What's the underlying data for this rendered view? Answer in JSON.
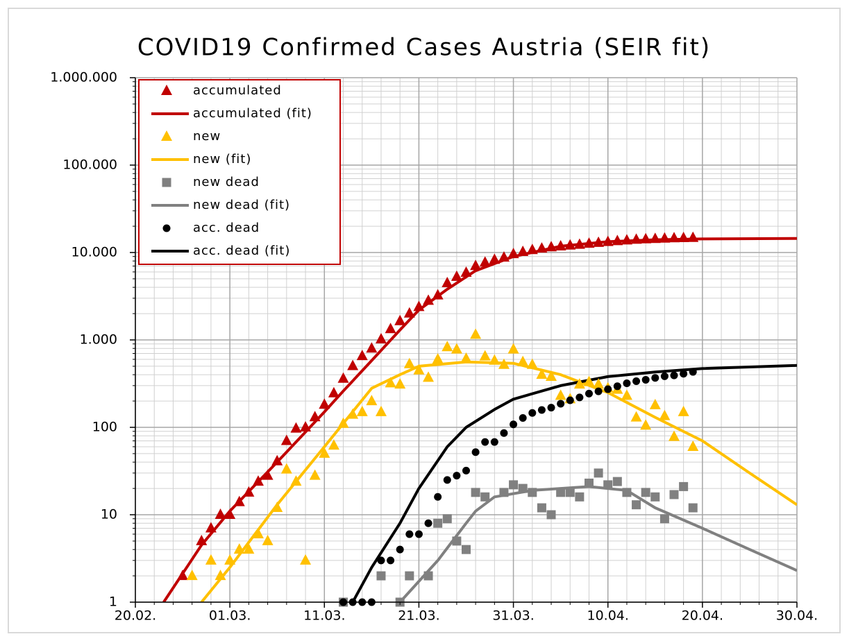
{
  "chart_data": {
    "type": "scatter",
    "title": "COVID19 Confirmed Cases Austria (SEIR fit)",
    "log_y": true,
    "grid": true,
    "legend": "upper left",
    "xlim": [
      0,
      70
    ],
    "xticks": [
      {
        "value": 0,
        "label": "20.02."
      },
      {
        "value": 10,
        "label": "01.03."
      },
      {
        "value": 20,
        "label": "11.03."
      },
      {
        "value": 30,
        "label": "21.03."
      },
      {
        "value": 40,
        "label": "31.03."
      },
      {
        "value": 50,
        "label": "10.04."
      },
      {
        "value": 60,
        "label": "20.04."
      },
      {
        "value": 70,
        "label": "30.04."
      }
    ],
    "ylim": [
      1,
      1000000
    ],
    "yticks": [
      1,
      10,
      100,
      {
        "value": 1000,
        "label": "1.000"
      },
      {
        "value": 10000,
        "label": "10.000"
      },
      {
        "value": 100000,
        "label": "100.000"
      },
      {
        "value": 1000000,
        "label": "1.000.000"
      }
    ],
    "series": [
      {
        "name": "accumulated",
        "color": "#c00000",
        "marker": "triangle",
        "x": [
          5,
          7,
          8,
          9,
          10,
          11,
          12,
          13,
          14,
          15,
          16,
          17,
          18,
          19,
          20,
          21,
          22,
          23,
          24,
          25,
          26,
          27,
          28,
          29,
          30,
          31,
          32,
          33,
          34,
          35,
          36,
          37,
          38,
          39,
          40,
          41,
          42,
          43,
          44,
          45,
          46,
          47,
          48,
          49,
          50,
          51,
          52,
          53,
          54,
          55,
          56,
          57,
          58,
          59
        ],
        "values": [
          2,
          5,
          7,
          10,
          10,
          14,
          18,
          24,
          28,
          41,
          70,
          97,
          100,
          131,
          182,
          246,
          361,
          504,
          655,
          800,
          1018,
          1332,
          1646,
          2013,
          2388,
          2814,
          3244,
          4474,
          5283,
          5888,
          7029,
          7697,
          8271,
          8788,
          9618,
          10180,
          10711,
          11129,
          11524,
          11781,
          12051,
          12297,
          12639,
          12942,
          13244,
          13555,
          13806,
          14041,
          14226,
          14336,
          14476,
          14595,
          14671,
          14749
        ]
      },
      {
        "name": "accumulated (fit)",
        "color": "#c00000",
        "marker": "line",
        "x": [
          3,
          7,
          10,
          15,
          20,
          22,
          25,
          28,
          30,
          33,
          36,
          40,
          45,
          50,
          55,
          60,
          70
        ],
        "values": [
          1,
          4.5,
          11,
          40,
          150,
          260,
          580,
          1300,
          2200,
          3800,
          6200,
          9000,
          11800,
          13300,
          14000,
          14300,
          14500
        ]
      },
      {
        "name": "new",
        "color": "#ffc000",
        "marker": "triangle",
        "x": [
          6,
          8,
          9,
          10,
          11,
          12,
          13,
          14,
          15,
          16,
          17,
          18,
          19,
          20,
          21,
          22,
          23,
          24,
          25,
          26,
          27,
          28,
          29,
          30,
          31,
          32,
          33,
          34,
          35,
          36,
          37,
          38,
          39,
          40,
          41,
          42,
          43,
          44,
          45,
          46,
          47,
          48,
          49,
          50,
          51,
          52,
          53,
          54,
          55,
          56,
          57,
          58,
          59
        ],
        "values": [
          2,
          3,
          2,
          3,
          4,
          4,
          6,
          5,
          12,
          33,
          24,
          3,
          28,
          50,
          62,
          110,
          140,
          150,
          200,
          150,
          320,
          310,
          530,
          450,
          370,
          600,
          830,
          780,
          610,
          1150,
          650,
          580,
          520,
          780,
          560,
          520,
          400,
          380,
          230,
          210,
          310,
          330,
          310,
          280,
          270,
          230,
          130,
          105,
          180,
          135,
          78,
          150,
          60
        ]
      },
      {
        "name": "new (fit)",
        "color": "#ffc000",
        "marker": "line",
        "x": [
          7,
          10,
          15,
          20,
          25,
          28,
          30,
          35,
          40,
          45,
          50,
          55,
          60,
          65,
          70
        ],
        "values": [
          1,
          2.5,
          13,
          60,
          280,
          400,
          500,
          560,
          540,
          400,
          250,
          130,
          70,
          30,
          13
        ]
      },
      {
        "name": "new dead",
        "color": "#808080",
        "marker": "square",
        "x": [
          22,
          26,
          28,
          29,
          31,
          32,
          33,
          34,
          35,
          36,
          37,
          39,
          40,
          41,
          42,
          43,
          44,
          45,
          46,
          47,
          48,
          49,
          50,
          51,
          52,
          53,
          54,
          55,
          56,
          57,
          58,
          59
        ],
        "values": [
          1,
          2,
          1,
          2,
          2,
          8,
          9,
          5,
          4,
          18,
          16,
          18,
          22,
          20,
          18,
          12,
          10,
          18,
          18,
          16,
          23,
          30,
          22,
          24,
          18,
          13,
          18,
          16,
          9,
          17,
          21,
          12
        ]
      },
      {
        "name": "new dead (fit)",
        "color": "#808080",
        "marker": "line",
        "x": [
          28,
          32,
          35,
          36,
          38,
          42,
          48,
          52,
          55,
          60,
          65,
          70
        ],
        "values": [
          1,
          3,
          8,
          11,
          16,
          19,
          21,
          19,
          12,
          7,
          4,
          2.3
        ]
      },
      {
        "name": "acc. dead",
        "color": "#000000",
        "marker": "circle",
        "x": [
          22,
          23,
          24,
          25,
          26,
          27,
          28,
          29,
          30,
          31,
          32,
          33,
          34,
          35,
          36,
          37,
          38,
          39,
          40,
          41,
          42,
          43,
          44,
          45,
          46,
          47,
          48,
          49,
          50,
          51,
          52,
          53,
          54,
          55,
          56,
          57,
          58,
          59
        ],
        "values": [
          1,
          1,
          1,
          1,
          3,
          3,
          4,
          6,
          6,
          8,
          16,
          25,
          28,
          32,
          52,
          68,
          68,
          86,
          108,
          128,
          146,
          158,
          168,
          186,
          204,
          220,
          243,
          258,
          273,
          295,
          319,
          337,
          350,
          368,
          384,
          393,
          410,
          431
        ]
      },
      {
        "name": "acc. dead (fit)",
        "color": "#000000",
        "marker": "line",
        "x": [
          23,
          25,
          28,
          30,
          33,
          35,
          38,
          40,
          45,
          50,
          55,
          60,
          70
        ],
        "values": [
          1,
          2.5,
          8,
          20,
          60,
          100,
          160,
          210,
          300,
          380,
          430,
          470,
          510
        ]
      }
    ]
  }
}
